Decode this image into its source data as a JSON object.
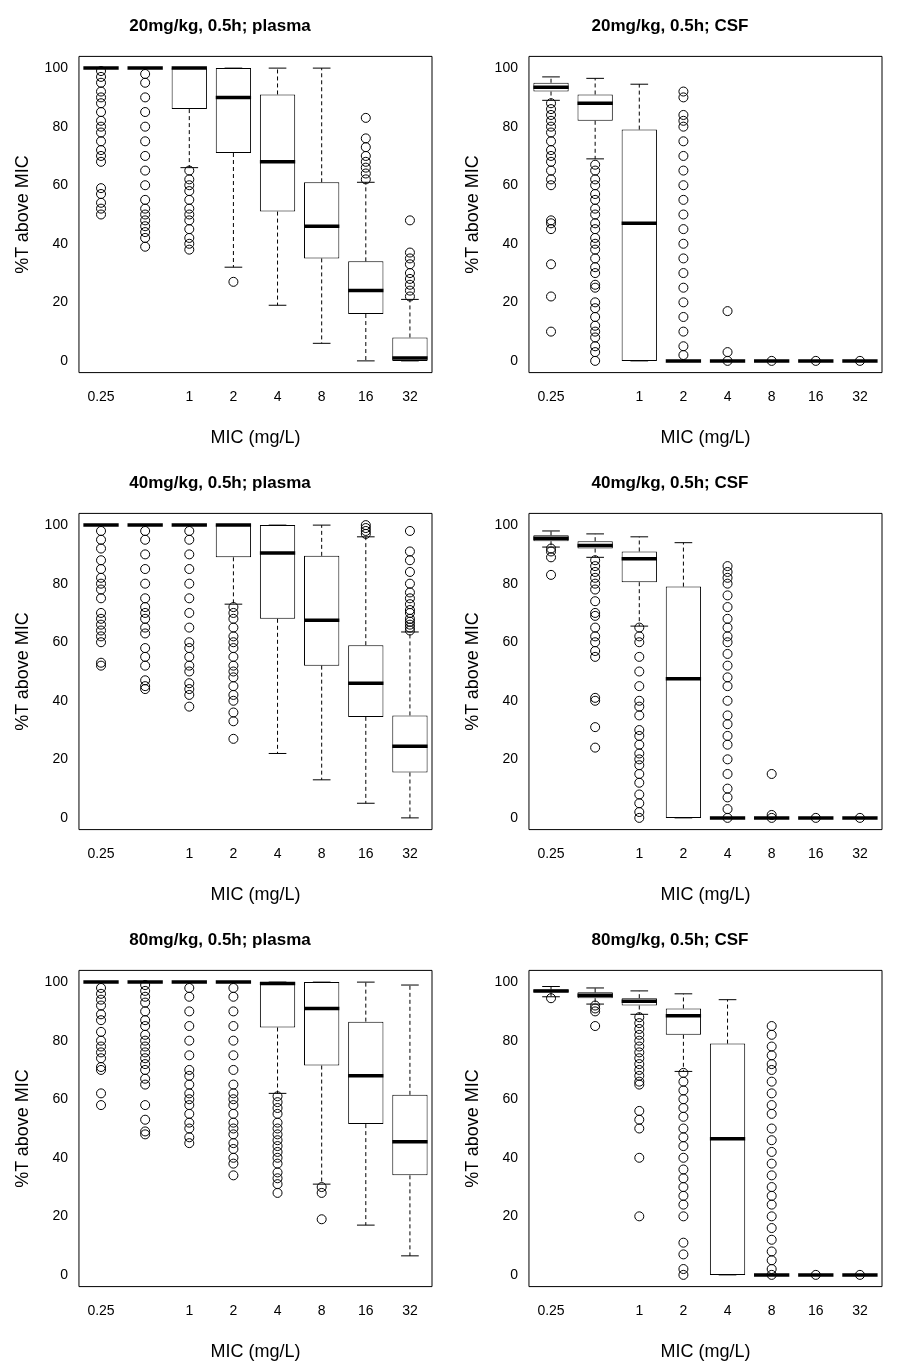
{
  "chart_data": [
    {
      "type": "box",
      "title": "20mg/kg, 0.5h; plasma",
      "xlabel": "MIC (mg/L)",
      "ylabel": "%T above MIC",
      "categories": [
        "0.25",
        null,
        "1",
        "2",
        "4",
        "8",
        "16",
        "32"
      ],
      "ylim": [
        -4,
        104
      ],
      "yticks": [
        0,
        20,
        40,
        60,
        80,
        100
      ],
      "boxes": [
        {
          "low": 100,
          "q1": 100,
          "median": 100,
          "q3": 100,
          "high": 100,
          "outliers": [
            99,
            97,
            95,
            92,
            90,
            88,
            85,
            82,
            80,
            78,
            75,
            72,
            70,
            68,
            59,
            57,
            54,
            52,
            50
          ]
        },
        {
          "low": 100,
          "q1": 100,
          "median": 100,
          "q3": 100,
          "high": 100,
          "outliers": [
            98,
            95,
            90,
            85,
            80,
            75,
            70,
            65,
            60,
            55,
            52,
            50,
            48,
            46,
            44,
            42,
            39
          ]
        },
        {
          "low": 66,
          "q1": 86,
          "median": 100,
          "q3": 100,
          "high": 100,
          "outliers": [
            65,
            62,
            60,
            58,
            55,
            52,
            50,
            48,
            45,
            42,
            40,
            38
          ]
        },
        {
          "low": 32,
          "q1": 71,
          "median": 90,
          "q3": 100,
          "high": 100,
          "outliers": [
            27
          ]
        },
        {
          "low": 19,
          "q1": 51,
          "median": 68,
          "q3": 91,
          "high": 100
        },
        {
          "low": 6,
          "q1": 35,
          "median": 46,
          "q3": 61,
          "high": 100
        },
        {
          "low": 0,
          "q1": 16,
          "median": 24,
          "q3": 34,
          "high": 61,
          "outliers": [
            62,
            64,
            66,
            68,
            70,
            73,
            76,
            83
          ]
        },
        {
          "low": 0,
          "q1": 0,
          "median": 1,
          "q3": 8,
          "high": 21,
          "outliers": [
            22,
            24,
            26,
            28,
            30,
            33,
            35,
            37,
            48
          ]
        }
      ]
    },
    {
      "type": "box",
      "title": "20mg/kg, 0.5h; CSF",
      "xlabel": "MIC (mg/L)",
      "ylabel": "%T above MIC",
      "categories": [
        "0.25",
        null,
        "1",
        "2",
        "4",
        "8",
        "16",
        "32"
      ],
      "ylim": [
        -4,
        104
      ],
      "yticks": [
        0,
        20,
        40,
        60,
        80,
        100
      ],
      "boxes": [
        {
          "low": 89,
          "q1": 92,
          "median": 93.5,
          "q3": 95,
          "high": 97,
          "outliers": [
            88,
            86,
            84,
            82,
            80,
            78,
            75,
            72,
            70,
            68,
            65,
            62,
            60,
            48,
            47,
            45,
            33,
            22,
            10
          ]
        },
        {
          "low": 69,
          "q1": 82,
          "median": 88,
          "q3": 91,
          "high": 96.5,
          "outliers": [
            67,
            65,
            62,
            60,
            57,
            55,
            52,
            50,
            47,
            45,
            42,
            40,
            38,
            35,
            32,
            30,
            26,
            25,
            20,
            18,
            15,
            12,
            10,
            8,
            5,
            3,
            0
          ]
        },
        {
          "low": 0,
          "q1": 0,
          "median": 47,
          "q3": 79,
          "high": 94.5
        },
        {
          "low": 0,
          "q1": 0,
          "median": 0,
          "q3": 0,
          "high": 0,
          "outliers": [
            92,
            90,
            84,
            82,
            80,
            75,
            70,
            65,
            60,
            55,
            50,
            45,
            40,
            35,
            30,
            25,
            20,
            15,
            10,
            5,
            2
          ]
        },
        {
          "low": 0,
          "q1": 0,
          "median": 0,
          "q3": 0,
          "high": 0,
          "outliers": [
            17,
            3,
            0
          ]
        },
        {
          "low": 0,
          "q1": 0,
          "median": 0,
          "q3": 0,
          "high": 0,
          "outliers": [
            0
          ]
        },
        {
          "low": 0,
          "q1": 0,
          "median": 0,
          "q3": 0,
          "high": 0,
          "outliers": [
            0
          ]
        },
        {
          "low": 0,
          "q1": 0,
          "median": 0,
          "q3": 0,
          "high": 0,
          "outliers": [
            0
          ]
        }
      ]
    },
    {
      "type": "box",
      "title": "40mg/kg, 0.5h; plasma",
      "xlabel": "MIC (mg/L)",
      "ylabel": "%T above MIC",
      "categories": [
        "0.25",
        null,
        "1",
        "2",
        "4",
        "8",
        "16",
        "32"
      ],
      "ylim": [
        -4,
        104
      ],
      "yticks": [
        0,
        20,
        40,
        60,
        80,
        100
      ],
      "boxes": [
        {
          "low": 100,
          "q1": 100,
          "median": 100,
          "q3": 100,
          "high": 100,
          "outliers": [
            98,
            95,
            92,
            88,
            85,
            82,
            80,
            78,
            75,
            70,
            68,
            66,
            64,
            62,
            60,
            53,
            52
          ]
        },
        {
          "low": 100,
          "q1": 100,
          "median": 100,
          "q3": 100,
          "high": 100,
          "outliers": [
            98,
            95,
            90,
            85,
            80,
            75,
            72,
            70,
            68,
            65,
            63,
            58,
            55,
            52,
            47,
            45,
            44
          ]
        },
        {
          "low": 100,
          "q1": 100,
          "median": 100,
          "q3": 100,
          "high": 100,
          "outliers": [
            98,
            95,
            90,
            85,
            80,
            75,
            70,
            65,
            60,
            58,
            55,
            52,
            50,
            46,
            44,
            42,
            38
          ]
        },
        {
          "low": 73,
          "q1": 89,
          "median": 100,
          "q3": 100,
          "high": 100,
          "outliers": [
            72,
            70,
            68,
            65,
            62,
            60,
            58,
            55,
            52,
            50,
            48,
            45,
            42,
            40,
            36,
            33,
            27
          ]
        },
        {
          "low": 22,
          "q1": 68,
          "median": 90.5,
          "q3": 100,
          "high": 100
        },
        {
          "low": 13,
          "q1": 52,
          "median": 67.5,
          "q3": 89.5,
          "high": 100
        },
        {
          "low": 5,
          "q1": 34.5,
          "median": 46,
          "q3": 59,
          "high": 96,
          "outliers": [
            97,
            98,
            99,
            100
          ]
        },
        {
          "low": 0,
          "q1": 15.5,
          "median": 24.5,
          "q3": 35,
          "high": 63.5,
          "outliers": [
            64,
            65,
            66,
            67,
            68,
            70,
            71,
            73,
            75,
            77,
            80,
            84,
            88,
            91,
            98
          ]
        }
      ]
    },
    {
      "type": "box",
      "title": "40mg/kg, 0.5h; CSF",
      "xlabel": "MIC (mg/L)",
      "ylabel": "%T above MIC",
      "categories": [
        "0.25",
        null,
        "1",
        "2",
        "4",
        "8",
        "16",
        "32"
      ],
      "ylim": [
        -4,
        104
      ],
      "yticks": [
        0,
        20,
        40,
        60,
        80,
        100
      ],
      "boxes": [
        {
          "low": 92.5,
          "q1": 94.5,
          "median": 95.5,
          "q3": 96.5,
          "high": 98,
          "outliers": [
            92,
            91,
            89,
            83
          ]
        },
        {
          "low": 89,
          "q1": 92,
          "median": 93,
          "q3": 94.5,
          "high": 97,
          "outliers": [
            88,
            86,
            84,
            82,
            80,
            78,
            74,
            70,
            69,
            65,
            62,
            60,
            57,
            55,
            41,
            40,
            31,
            24
          ]
        },
        {
          "low": 65.5,
          "q1": 80.5,
          "median": 88.5,
          "q3": 91,
          "high": 96,
          "outliers": [
            65,
            62,
            60,
            55,
            50,
            45,
            40,
            38,
            35,
            30,
            28,
            25,
            22,
            20,
            18,
            15,
            12,
            8,
            5,
            2,
            0
          ]
        },
        {
          "low": 0,
          "q1": 0,
          "median": 47.5,
          "q3": 79,
          "high": 94
        },
        {
          "low": 0,
          "q1": 0,
          "median": 0,
          "q3": 0,
          "high": 0,
          "outliers": [
            86,
            84,
            82,
            80,
            76,
            72,
            68,
            65,
            62,
            60,
            56,
            52,
            48,
            45,
            40,
            35,
            32,
            28,
            25,
            20,
            15,
            10,
            7,
            3,
            0
          ]
        },
        {
          "low": 0,
          "q1": 0,
          "median": 0,
          "q3": 0,
          "high": 0,
          "outliers": [
            15,
            1,
            0
          ]
        },
        {
          "low": 0,
          "q1": 0,
          "median": 0,
          "q3": 0,
          "high": 0,
          "outliers": [
            0
          ]
        },
        {
          "low": 0,
          "q1": 0,
          "median": 0,
          "q3": 0,
          "high": 0,
          "outliers": [
            0
          ]
        }
      ]
    },
    {
      "type": "box",
      "title": "80mg/kg, 0.5h; plasma",
      "xlabel": "MIC (mg/L)",
      "ylabel": "%T above MIC",
      "categories": [
        "0.25",
        null,
        "1",
        "2",
        "4",
        "8",
        "16",
        "32"
      ],
      "ylim": [
        -4,
        104
      ],
      "yticks": [
        0,
        20,
        40,
        60,
        80,
        100
      ],
      "boxes": [
        {
          "low": 100,
          "q1": 100,
          "median": 100,
          "q3": 100,
          "high": 100,
          "outliers": [
            98,
            96,
            94,
            92,
            89,
            87,
            83,
            80,
            78,
            76,
            74,
            71,
            70,
            62,
            58
          ]
        },
        {
          "low": 100,
          "q1": 100,
          "median": 100,
          "q3": 100,
          "high": 100,
          "outliers": [
            99,
            97,
            95,
            93,
            90,
            87,
            85,
            82,
            80,
            78,
            76,
            74,
            72,
            70,
            67,
            65,
            58,
            53,
            49,
            48
          ]
        },
        {
          "low": 100,
          "q1": 100,
          "median": 100,
          "q3": 100,
          "high": 100,
          "outliers": [
            98,
            95,
            90,
            85,
            80,
            75,
            70,
            68,
            65,
            62,
            60,
            58,
            55,
            52,
            50,
            47,
            45
          ]
        },
        {
          "low": 100,
          "q1": 100,
          "median": 100,
          "q3": 100,
          "high": 100,
          "outliers": [
            98,
            95,
            90,
            85,
            80,
            75,
            70,
            65,
            62,
            60,
            58,
            55,
            52,
            50,
            48,
            45,
            43,
            40,
            38,
            34
          ]
        },
        {
          "low": 62,
          "q1": 84.5,
          "median": 99.5,
          "q3": 100,
          "high": 100,
          "outliers": [
            61,
            59,
            57,
            55,
            52,
            50,
            48,
            46,
            44,
            42,
            40,
            38,
            35,
            33,
            31,
            28
          ]
        },
        {
          "low": 31,
          "q1": 71.5,
          "median": 91,
          "q3": 100,
          "high": 100,
          "outliers": [
            30,
            28,
            19
          ]
        },
        {
          "low": 17,
          "q1": 51.5,
          "median": 68,
          "q3": 86.5,
          "high": 100
        },
        {
          "low": 6.5,
          "q1": 34,
          "median": 45.5,
          "q3": 61.5,
          "high": 99
        }
      ]
    },
    {
      "type": "box",
      "title": "80mg/kg, 0.5h; CSF",
      "xlabel": "MIC (mg/L)",
      "ylabel": "%T above MIC",
      "categories": [
        "0.25",
        null,
        "1",
        "2",
        "4",
        "8",
        "16",
        "32"
      ],
      "ylim": [
        -4,
        104
      ],
      "yticks": [
        0,
        20,
        40,
        60,
        80,
        100
      ],
      "boxes": [
        {
          "low": 95,
          "q1": 96.5,
          "median": 97,
          "q3": 97.5,
          "high": 98.5,
          "outliers": [
            94.5
          ]
        },
        {
          "low": 92.5,
          "q1": 94.5,
          "median": 95.5,
          "q3": 96.5,
          "high": 98,
          "outliers": [
            92,
            91,
            90,
            85
          ]
        },
        {
          "low": 89,
          "q1": 92,
          "median": 93.5,
          "q3": 94.5,
          "high": 97,
          "outliers": [
            88,
            86,
            84,
            82,
            80,
            78,
            76,
            74,
            72,
            70,
            68,
            66,
            65,
            56,
            53,
            50,
            40,
            20
          ]
        },
        {
          "low": 69.5,
          "q1": 82,
          "median": 88.5,
          "q3": 91,
          "high": 96,
          "outliers": [
            69,
            66,
            63,
            60,
            57,
            54,
            50,
            47,
            44,
            40,
            36,
            33,
            30,
            27,
            24,
            20,
            11,
            7,
            2,
            0
          ]
        },
        {
          "low": 0,
          "q1": 0,
          "median": 46.5,
          "q3": 79,
          "high": 94
        },
        {
          "low": 0,
          "q1": 0,
          "median": 0,
          "q3": 0,
          "high": 0,
          "outliers": [
            85,
            82,
            78,
            75,
            72,
            70,
            66,
            62,
            58,
            55,
            50,
            46,
            42,
            38,
            34,
            30,
            27,
            24,
            20,
            16,
            12,
            8,
            5,
            2,
            0
          ]
        },
        {
          "low": 0,
          "q1": 0,
          "median": 0,
          "q3": 0,
          "high": 0,
          "outliers": [
            0
          ]
        },
        {
          "low": 0,
          "q1": 0,
          "median": 0,
          "q3": 0,
          "high": 0,
          "outliers": [
            0
          ]
        }
      ]
    }
  ]
}
